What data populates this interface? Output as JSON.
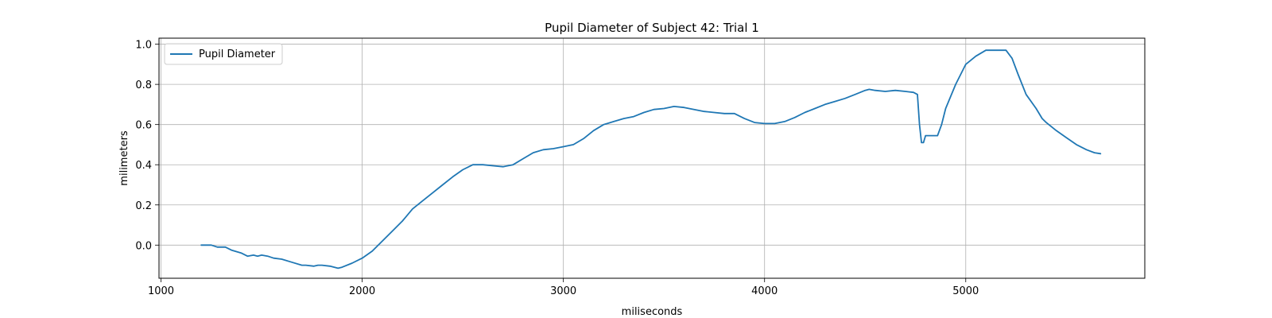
{
  "chart_data": {
    "type": "line",
    "title": "Pupil Diameter of Subject 42: Trial 1",
    "xlabel": "miliseconds",
    "ylabel": "milimeters",
    "xlim": [
      990,
      5890
    ],
    "ylim": [
      -0.165,
      1.03
    ],
    "xticks": [
      1000,
      2000,
      3000,
      4000,
      5000
    ],
    "yticks": [
      0.0,
      0.2,
      0.4,
      0.6,
      0.8,
      1.0
    ],
    "xtick_labels": [
      "1000",
      "2000",
      "3000",
      "4000",
      "5000"
    ],
    "ytick_labels": [
      "0.0",
      "0.2",
      "0.4",
      "0.6",
      "0.8",
      "1.0"
    ],
    "grid": true,
    "legend": {
      "position": "upper-left",
      "entries": [
        "Pupil Diameter"
      ]
    },
    "colors": {
      "series": "#1f77b4",
      "grid": "#b0b0b0",
      "axes": "#000000"
    },
    "series": [
      {
        "name": "Pupil Diameter",
        "x": [
          1200,
          1250,
          1280,
          1320,
          1350,
          1400,
          1430,
          1460,
          1480,
          1500,
          1530,
          1560,
          1600,
          1650,
          1700,
          1720,
          1760,
          1780,
          1800,
          1840,
          1880,
          1900,
          1950,
          2000,
          2050,
          2100,
          2150,
          2200,
          2250,
          2300,
          2350,
          2400,
          2450,
          2500,
          2550,
          2600,
          2650,
          2700,
          2750,
          2800,
          2850,
          2900,
          2950,
          3000,
          3050,
          3100,
          3150,
          3200,
          3250,
          3300,
          3350,
          3400,
          3450,
          3500,
          3550,
          3600,
          3650,
          3700,
          3750,
          3800,
          3850,
          3900,
          3950,
          4000,
          4050,
          4100,
          4150,
          4200,
          4250,
          4300,
          4350,
          4400,
          4450,
          4500,
          4520,
          4550,
          4600,
          4650,
          4700,
          4740,
          4760,
          4770,
          4780,
          4790,
          4800,
          4820,
          4860,
          4880,
          4900,
          4950,
          5000,
          5050,
          5100,
          5150,
          5200,
          5230,
          5260,
          5300,
          5350,
          5380,
          5400,
          5450,
          5500,
          5550,
          5600,
          5640,
          5670
        ],
        "values": [
          0.0,
          0.0,
          -0.01,
          -0.01,
          -0.025,
          -0.04,
          -0.055,
          -0.05,
          -0.055,
          -0.05,
          -0.055,
          -0.065,
          -0.07,
          -0.085,
          -0.1,
          -0.1,
          -0.105,
          -0.1,
          -0.1,
          -0.105,
          -0.115,
          -0.11,
          -0.09,
          -0.065,
          -0.03,
          0.02,
          0.07,
          0.12,
          0.18,
          0.22,
          0.26,
          0.3,
          0.34,
          0.375,
          0.4,
          0.4,
          0.395,
          0.39,
          0.4,
          0.43,
          0.46,
          0.475,
          0.48,
          0.49,
          0.5,
          0.53,
          0.57,
          0.6,
          0.615,
          0.63,
          0.64,
          0.66,
          0.675,
          0.68,
          0.69,
          0.685,
          0.675,
          0.665,
          0.66,
          0.655,
          0.655,
          0.63,
          0.61,
          0.605,
          0.605,
          0.615,
          0.635,
          0.66,
          0.68,
          0.7,
          0.715,
          0.73,
          0.75,
          0.77,
          0.775,
          0.77,
          0.765,
          0.77,
          0.765,
          0.76,
          0.75,
          0.6,
          0.51,
          0.51,
          0.545,
          0.545,
          0.545,
          0.6,
          0.68,
          0.8,
          0.9,
          0.94,
          0.97,
          0.97,
          0.97,
          0.93,
          0.85,
          0.75,
          0.68,
          0.63,
          0.61,
          0.57,
          0.535,
          0.5,
          0.475,
          0.46,
          0.455
        ]
      }
    ]
  }
}
